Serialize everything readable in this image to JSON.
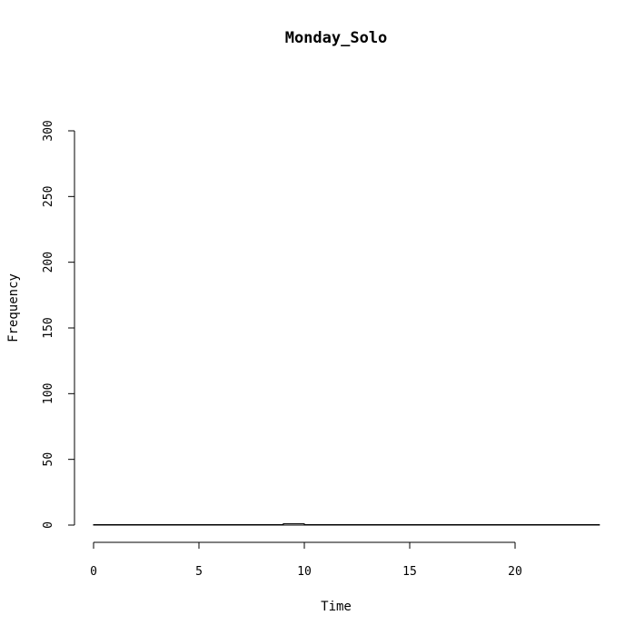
{
  "chart_data": {
    "type": "bar",
    "title": "Monday_Solo",
    "xlabel": "Time",
    "ylabel": "Frequency",
    "xlim": [
      0,
      24
    ],
    "ylim": [
      0,
      300
    ],
    "x_ticks": [
      0,
      5,
      10,
      15,
      20
    ],
    "y_ticks": [
      0,
      50,
      100,
      150,
      200,
      250,
      300
    ],
    "bin_width": 1,
    "bins": [
      {
        "start": 0,
        "end": 1,
        "value": 0
      },
      {
        "start": 1,
        "end": 2,
        "value": 0
      },
      {
        "start": 2,
        "end": 3,
        "value": 0
      },
      {
        "start": 3,
        "end": 4,
        "value": 0
      },
      {
        "start": 4,
        "end": 5,
        "value": 0
      },
      {
        "start": 5,
        "end": 6,
        "value": 0
      },
      {
        "start": 6,
        "end": 7,
        "value": 0
      },
      {
        "start": 7,
        "end": 8,
        "value": 0
      },
      {
        "start": 8,
        "end": 9,
        "value": 0
      },
      {
        "start": 9,
        "end": 10,
        "value": 1
      },
      {
        "start": 10,
        "end": 11,
        "value": 0
      },
      {
        "start": 11,
        "end": 12,
        "value": 0
      },
      {
        "start": 12,
        "end": 13,
        "value": 0
      },
      {
        "start": 13,
        "end": 14,
        "value": 0
      },
      {
        "start": 14,
        "end": 15,
        "value": 0
      },
      {
        "start": 15,
        "end": 16,
        "value": 0
      },
      {
        "start": 16,
        "end": 17,
        "value": 0
      },
      {
        "start": 17,
        "end": 18,
        "value": 0
      },
      {
        "start": 18,
        "end": 19,
        "value": 0
      },
      {
        "start": 19,
        "end": 20,
        "value": 0
      },
      {
        "start": 20,
        "end": 21,
        "value": 0
      },
      {
        "start": 21,
        "end": 22,
        "value": 0
      },
      {
        "start": 22,
        "end": 23,
        "value": 0
      },
      {
        "start": 23,
        "end": 24,
        "value": 0
      }
    ],
    "grid": false,
    "legend": "none"
  }
}
